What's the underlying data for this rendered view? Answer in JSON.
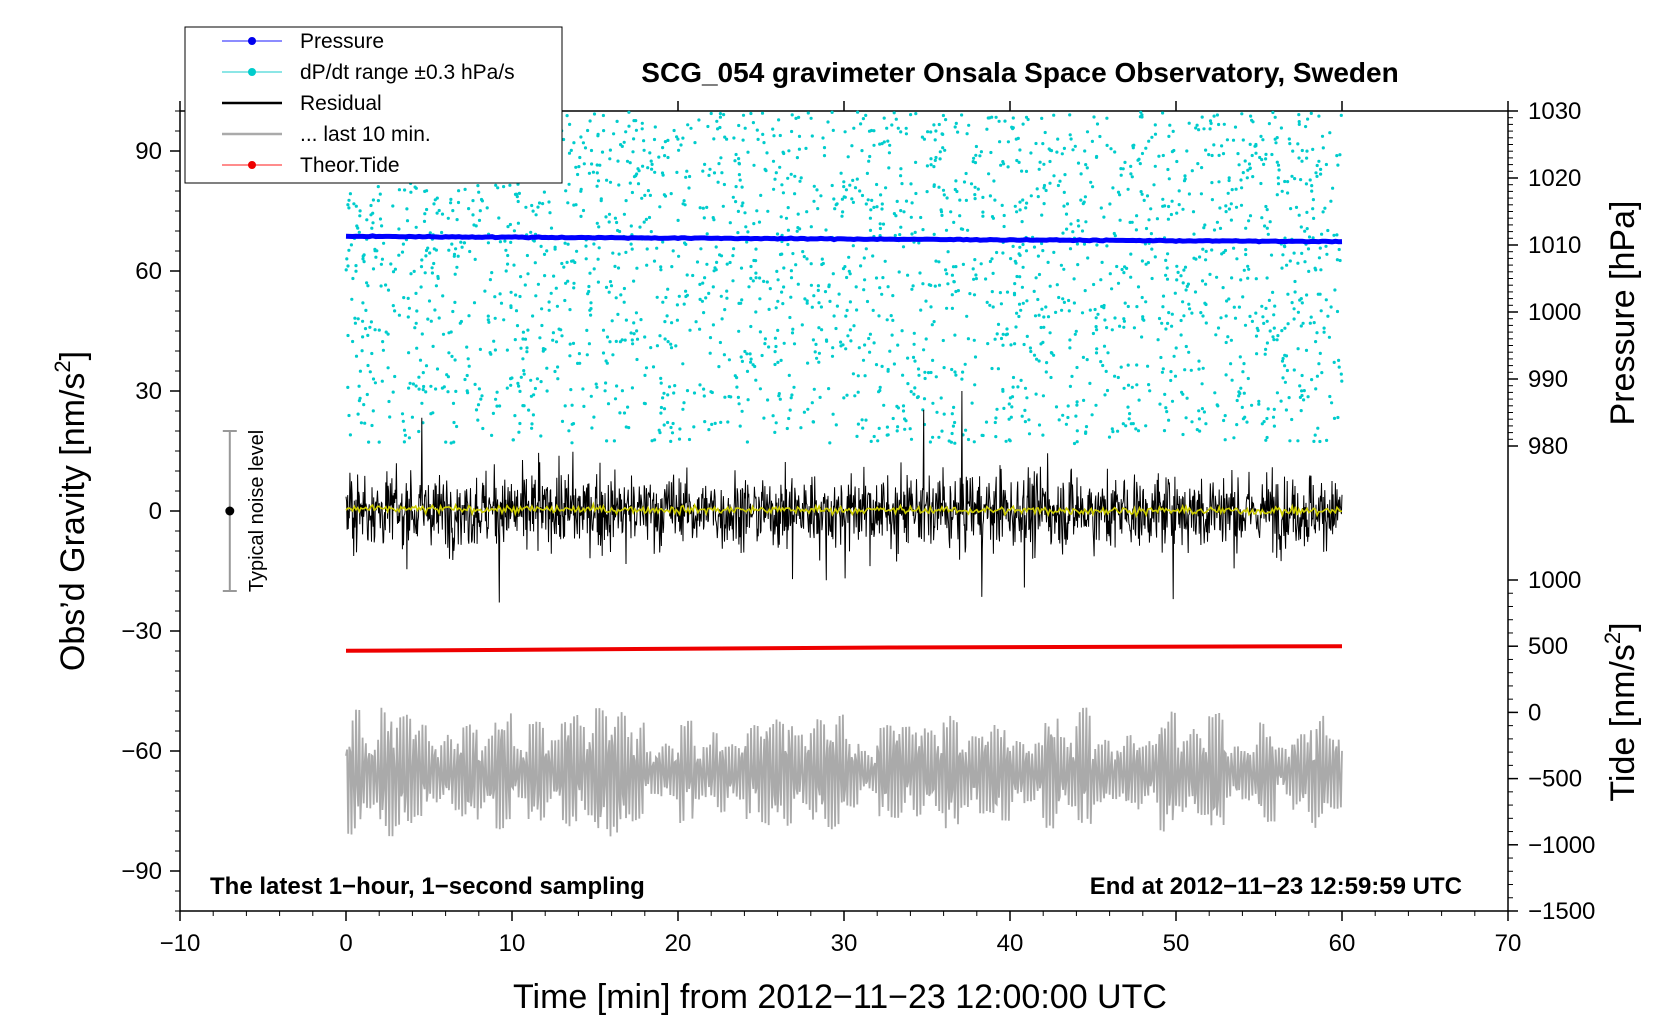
{
  "chart_data": {
    "type": "line",
    "title": "SCG_054 gravimeter Onsala Space Observatory, Sweden",
    "xlabel": "Time [min] from 2012−11−23 12:00:00 UTC",
    "ylabel_left": "Obs’d Gravity [nm/s2]",
    "ylabel_left_base": "Obs’d Gravity [nm/s",
    "ylabel_left_sup": "2",
    "ylabel_left_end": "]",
    "ylabel_right_pressure": "Pressure [hPa]",
    "ylabel_right_tide_base": "Tide [nm/s",
    "ylabel_right_tide_sup": "2",
    "ylabel_right_tide_end": "]",
    "xlim": [
      -10,
      70
    ],
    "ylim": [
      -100,
      100
    ],
    "x_ticks": [
      "−10",
      "0",
      "10",
      "20",
      "30",
      "40",
      "50",
      "60",
      "70"
    ],
    "x_tick_values": [
      -10,
      0,
      10,
      20,
      30,
      40,
      50,
      60,
      70
    ],
    "y_ticks": [
      "90",
      "60",
      "30",
      "0",
      "−30",
      "−60",
      "−90"
    ],
    "y_tick_values": [
      90,
      60,
      30,
      0,
      -30,
      -60,
      -90
    ],
    "pressure_axis": {
      "range": [
        980,
        1030
      ],
      "ticks": [
        "1030",
        "1020",
        "1010",
        "1000",
        "990",
        "980"
      ],
      "tick_values": [
        1030,
        1020,
        1010,
        1000,
        990,
        980
      ]
    },
    "tide_axis": {
      "range": [
        -1500,
        1000
      ],
      "ticks": [
        "1000",
        "500",
        "0",
        "−500",
        "−1000",
        "−1500"
      ],
      "tick_values": [
        1000,
        500,
        0,
        -500,
        -1000,
        -1500
      ]
    },
    "series": [
      {
        "name": "Pressure",
        "color": "#0000ff",
        "axis": "pressure",
        "x": [
          0,
          60
        ],
        "values": [
          1011.3,
          1010.5
        ],
        "description_values_hPa": [
          1011.3,
          1010.5
        ]
      },
      {
        "name": "dP/dt range ±0.3 hPa/s",
        "color": "#00cccc",
        "axis": "pressure",
        "scatter_range": [
          980,
          1030
        ],
        "x": [
          0,
          60
        ]
      },
      {
        "name": "Residual",
        "color": "#000000",
        "axis": "gravity",
        "x": [
          0,
          60
        ],
        "noise_range": [
          -30,
          30
        ],
        "center": 0
      },
      {
        "name": "... last 10 min.",
        "color": "#aaaaaa",
        "axis": "tide",
        "x": [
          0,
          60
        ],
        "center": -450,
        "amplitude": 450
      },
      {
        "name": "Theor.Tide",
        "color": "#ee0000",
        "axis": "tide",
        "x": [
          0,
          33,
          60
        ],
        "values": [
          465,
          490,
          500
        ]
      },
      {
        "name": "running mean",
        "color": "#cccc00",
        "axis": "gravity",
        "x": [
          0,
          60
        ],
        "values": [
          0.5,
          0
        ]
      }
    ],
    "legend": [
      "Pressure",
      "dP/dt range ±0.3 hPa/s",
      "Residual",
      "... last 10 min.",
      "Theor.Tide"
    ],
    "legend_position": "top-left",
    "noise_bar": {
      "label": "Typical noise level",
      "x": -7,
      "center": 0,
      "low": -20,
      "high": 20
    },
    "annotations": {
      "bottom_left": "The latest 1−hour, 1−second sampling",
      "bottom_right": "End at 2012−11−23 12:59:59 UTC"
    }
  }
}
